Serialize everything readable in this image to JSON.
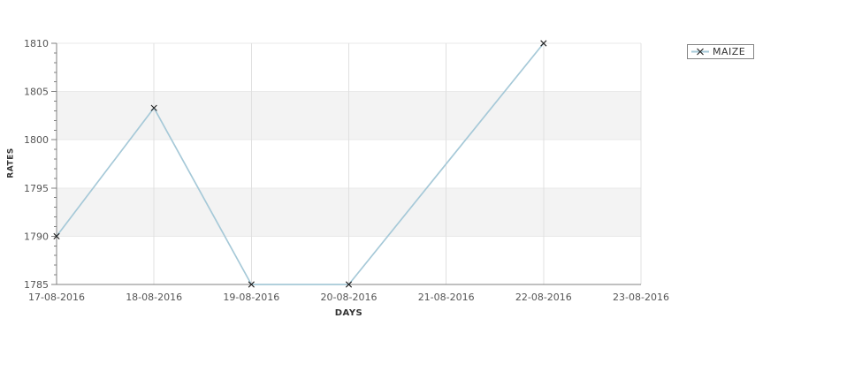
{
  "window": {
    "background": "#ffffff"
  },
  "chart_data": {
    "type": "line",
    "title": "",
    "xlabel": "DAYS",
    "ylabel": "RATES",
    "categories": [
      "17-08-2016",
      "18-08-2016",
      "19-08-2016",
      "20-08-2016",
      "21-08-2016",
      "22-08-2016",
      "23-08-2016"
    ],
    "series": [
      {
        "name": "MAIZE",
        "marker": "x",
        "points": [
          {
            "x": "17-08-2016",
            "y": 1790
          },
          {
            "x": "18-08-2016",
            "y": 1803.3
          },
          {
            "x": "19-08-2016",
            "y": 1785
          },
          {
            "x": "20-08-2016",
            "y": 1785
          },
          {
            "x": "22-08-2016",
            "y": 1810
          }
        ]
      }
    ],
    "ylim": [
      1785,
      1810
    ],
    "y_ticks": [
      1785,
      1790,
      1795,
      1800,
      1805,
      1810
    ],
    "y_minor_interval": 1,
    "grid": {
      "vertical": true,
      "alternate_horizontal_bands": true
    },
    "legend_position": "top-right"
  },
  "colors": {
    "line": "#a6c9d8",
    "marker": "#222222",
    "band": "#f3f3f3",
    "vgrid": "#e0e0e0",
    "hgrid": "#e9e9e9",
    "axis": "#808080",
    "tick_text": "#555555",
    "axis_title_text": "#333333",
    "legend_border": "#848484",
    "legend_text": "#333333"
  }
}
